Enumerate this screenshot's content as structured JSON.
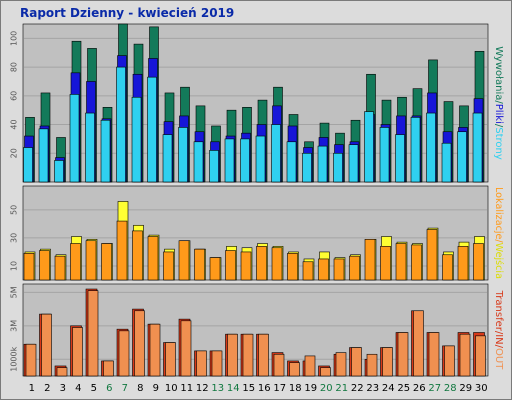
{
  "title": "Raport Dzienny -  kwiecień 2019",
  "colors": {
    "background": "#dcdcdc",
    "panel": "#c0c0c0",
    "grid": "#a4a4a4",
    "requests": "#137a5a",
    "files": "#1616d8",
    "pages": "#2fd0f0",
    "visits": "#ffff33",
    "sites": "#ff9a1a",
    "transfer_in": "#d83818",
    "transfer_out": "#f09050",
    "weekend_day": "#127840",
    "weekday": "#000000"
  },
  "chart_data": [
    {
      "type": "bar",
      "name": "hits",
      "categories": [
        "1",
        "2",
        "3",
        "4",
        "5",
        "6",
        "7",
        "8",
        "9",
        "10",
        "11",
        "12",
        "13",
        "14",
        "15",
        "16",
        "17",
        "18",
        "19",
        "20",
        "21",
        "22",
        "23",
        "24",
        "25",
        "26",
        "27",
        "28",
        "29",
        "30"
      ],
      "weekend_days": [
        "6",
        "7",
        "13",
        "14",
        "20",
        "21",
        "27",
        "28"
      ],
      "ylim": [
        0,
        110
      ],
      "yticks": [
        "20",
        "40",
        "60",
        "80",
        "100"
      ],
      "right_label_parts": [
        {
          "text": "Wywołania",
          "color": "#137a5a"
        },
        {
          "text": "/",
          "color": "#137a5a"
        },
        {
          "text": "Pliki",
          "color": "#1616d8"
        },
        {
          "text": "/",
          "color": "#137a5a"
        },
        {
          "text": "Strony",
          "color": "#2fd0f0"
        }
      ],
      "series": [
        {
          "name": "Wywołania",
          "values": [
            45,
            62,
            31,
            98,
            93,
            52,
            110,
            96,
            108,
            62,
            66,
            53,
            39,
            50,
            52,
            57,
            66,
            47,
            28,
            41,
            34,
            43,
            75,
            57,
            59,
            65,
            85,
            56,
            53,
            91
          ]
        },
        {
          "name": "Pliki",
          "values": [
            32,
            39,
            17,
            76,
            70,
            44,
            88,
            75,
            86,
            42,
            46,
            35,
            28,
            32,
            34,
            40,
            53,
            39,
            24,
            31,
            26,
            28,
            47,
            40,
            46,
            46,
            62,
            35,
            38,
            58
          ]
        },
        {
          "name": "Strony",
          "values": [
            24,
            37,
            15,
            61,
            48,
            43,
            80,
            59,
            73,
            33,
            38,
            28,
            22,
            30,
            30,
            32,
            40,
            28,
            20,
            25,
            20,
            26,
            49,
            38,
            33,
            45,
            48,
            27,
            35,
            48
          ]
        }
      ]
    },
    {
      "type": "bar",
      "name": "visits",
      "categories": [
        "1",
        "2",
        "3",
        "4",
        "5",
        "6",
        "7",
        "8",
        "9",
        "10",
        "11",
        "12",
        "13",
        "14",
        "15",
        "16",
        "17",
        "18",
        "19",
        "20",
        "21",
        "22",
        "23",
        "24",
        "25",
        "26",
        "27",
        "28",
        "29",
        "30"
      ],
      "ylim": [
        0,
        67
      ],
      "yticks": [
        "10",
        "30",
        "50"
      ],
      "right_label_parts": [
        {
          "text": "Lokalizacje",
          "color": "#ff9a1a"
        },
        {
          "text": "/",
          "color": "#ff9a1a"
        },
        {
          "text": "Wejścia",
          "color": "#dcdc00"
        }
      ],
      "series": [
        {
          "name": "Wejścia",
          "values": [
            20,
            22,
            18,
            31,
            29,
            26,
            56,
            39,
            32,
            22,
            28,
            22,
            16,
            24,
            23,
            26,
            24,
            20,
            15,
            20,
            16,
            18,
            29,
            31,
            27,
            26,
            37,
            20,
            27,
            31
          ]
        },
        {
          "name": "Lokalizacje",
          "values": [
            19,
            21,
            17,
            26,
            28,
            26,
            42,
            35,
            31,
            20,
            28,
            22,
            16,
            21,
            20,
            24,
            23,
            19,
            13,
            15,
            15,
            17,
            29,
            24,
            26,
            25,
            36,
            18,
            24,
            26
          ]
        }
      ]
    },
    {
      "type": "bar",
      "name": "transfer",
      "categories": [
        "1",
        "2",
        "3",
        "4",
        "5",
        "6",
        "7",
        "8",
        "9",
        "10",
        "11",
        "12",
        "13",
        "14",
        "15",
        "16",
        "17",
        "18",
        "19",
        "20",
        "21",
        "22",
        "23",
        "24",
        "25",
        "26",
        "27",
        "28",
        "29",
        "30"
      ],
      "ylim": [
        0,
        5.5
      ],
      "yticks": [
        "1000k",
        "3M",
        "5M"
      ],
      "right_label_parts": [
        {
          "text": "Transfer",
          "color": "#d83818"
        },
        {
          "text": "/",
          "color": "#d83818"
        },
        {
          "text": "IN",
          "color": "#d83818"
        },
        {
          "text": "/",
          "color": "#d83818"
        },
        {
          "text": "OUT",
          "color": "#f09050"
        }
      ],
      "series": [
        {
          "name": "IN",
          "values": [
            1.9,
            3.7,
            0.6,
            3.0,
            5.2,
            0.9,
            2.8,
            4.0,
            3.1,
            2.0,
            3.4,
            1.5,
            1.5,
            2.5,
            2.5,
            2.5,
            1.4,
            0.9,
            0.9,
            0.6,
            1.3,
            1.7,
            1.0,
            1.7,
            2.6,
            3.9,
            2.6,
            1.8,
            2.6,
            2.6
          ]
        },
        {
          "name": "OUT",
          "values": [
            1.9,
            3.7,
            0.5,
            2.9,
            5.1,
            0.9,
            2.7,
            3.9,
            3.1,
            2.0,
            3.3,
            1.5,
            1.5,
            2.5,
            2.5,
            2.5,
            1.3,
            0.8,
            1.2,
            0.5,
            1.4,
            1.7,
            1.3,
            1.7,
            2.6,
            3.9,
            2.6,
            1.8,
            2.5,
            2.4
          ]
        }
      ]
    }
  ]
}
